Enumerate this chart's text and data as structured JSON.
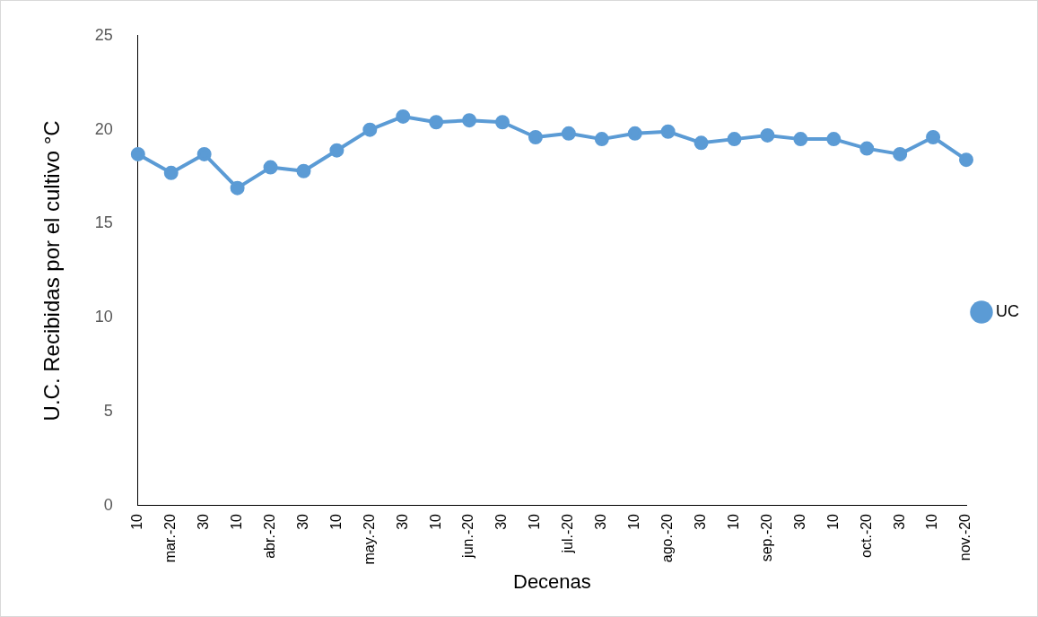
{
  "chart_data": {
    "type": "line",
    "xlabel": "Decenas",
    "ylabel": "U.C. Recibidas por el cultivo °C",
    "categories": [
      "10",
      "mar.-20",
      "30",
      "10",
      "abr.-20",
      "30",
      "10",
      "may.-20",
      "30",
      "10",
      "jun.-20",
      "30",
      "10",
      "jul.-20",
      "30",
      "10",
      "ago.-20",
      "30",
      "10",
      "sep.-20",
      "30",
      "10",
      "oct.-20",
      "30",
      "10",
      "nov.-20"
    ],
    "series": [
      {
        "name": "UC",
        "color": "#5b9bd5",
        "values": [
          18.7,
          17.7,
          18.7,
          16.9,
          18.0,
          17.8,
          18.9,
          20.0,
          20.7,
          20.4,
          20.5,
          20.4,
          19.6,
          19.8,
          19.5,
          19.8,
          19.9,
          19.3,
          19.5,
          19.7,
          19.5,
          19.5,
          19.0,
          18.7,
          19.6,
          18.4
        ]
      }
    ],
    "ylim": [
      0,
      25
    ],
    "yticks": [
      0,
      5,
      10,
      15,
      20,
      25
    ],
    "grid": false,
    "legend": "right",
    "marker": "circle",
    "line_style": "solid"
  }
}
